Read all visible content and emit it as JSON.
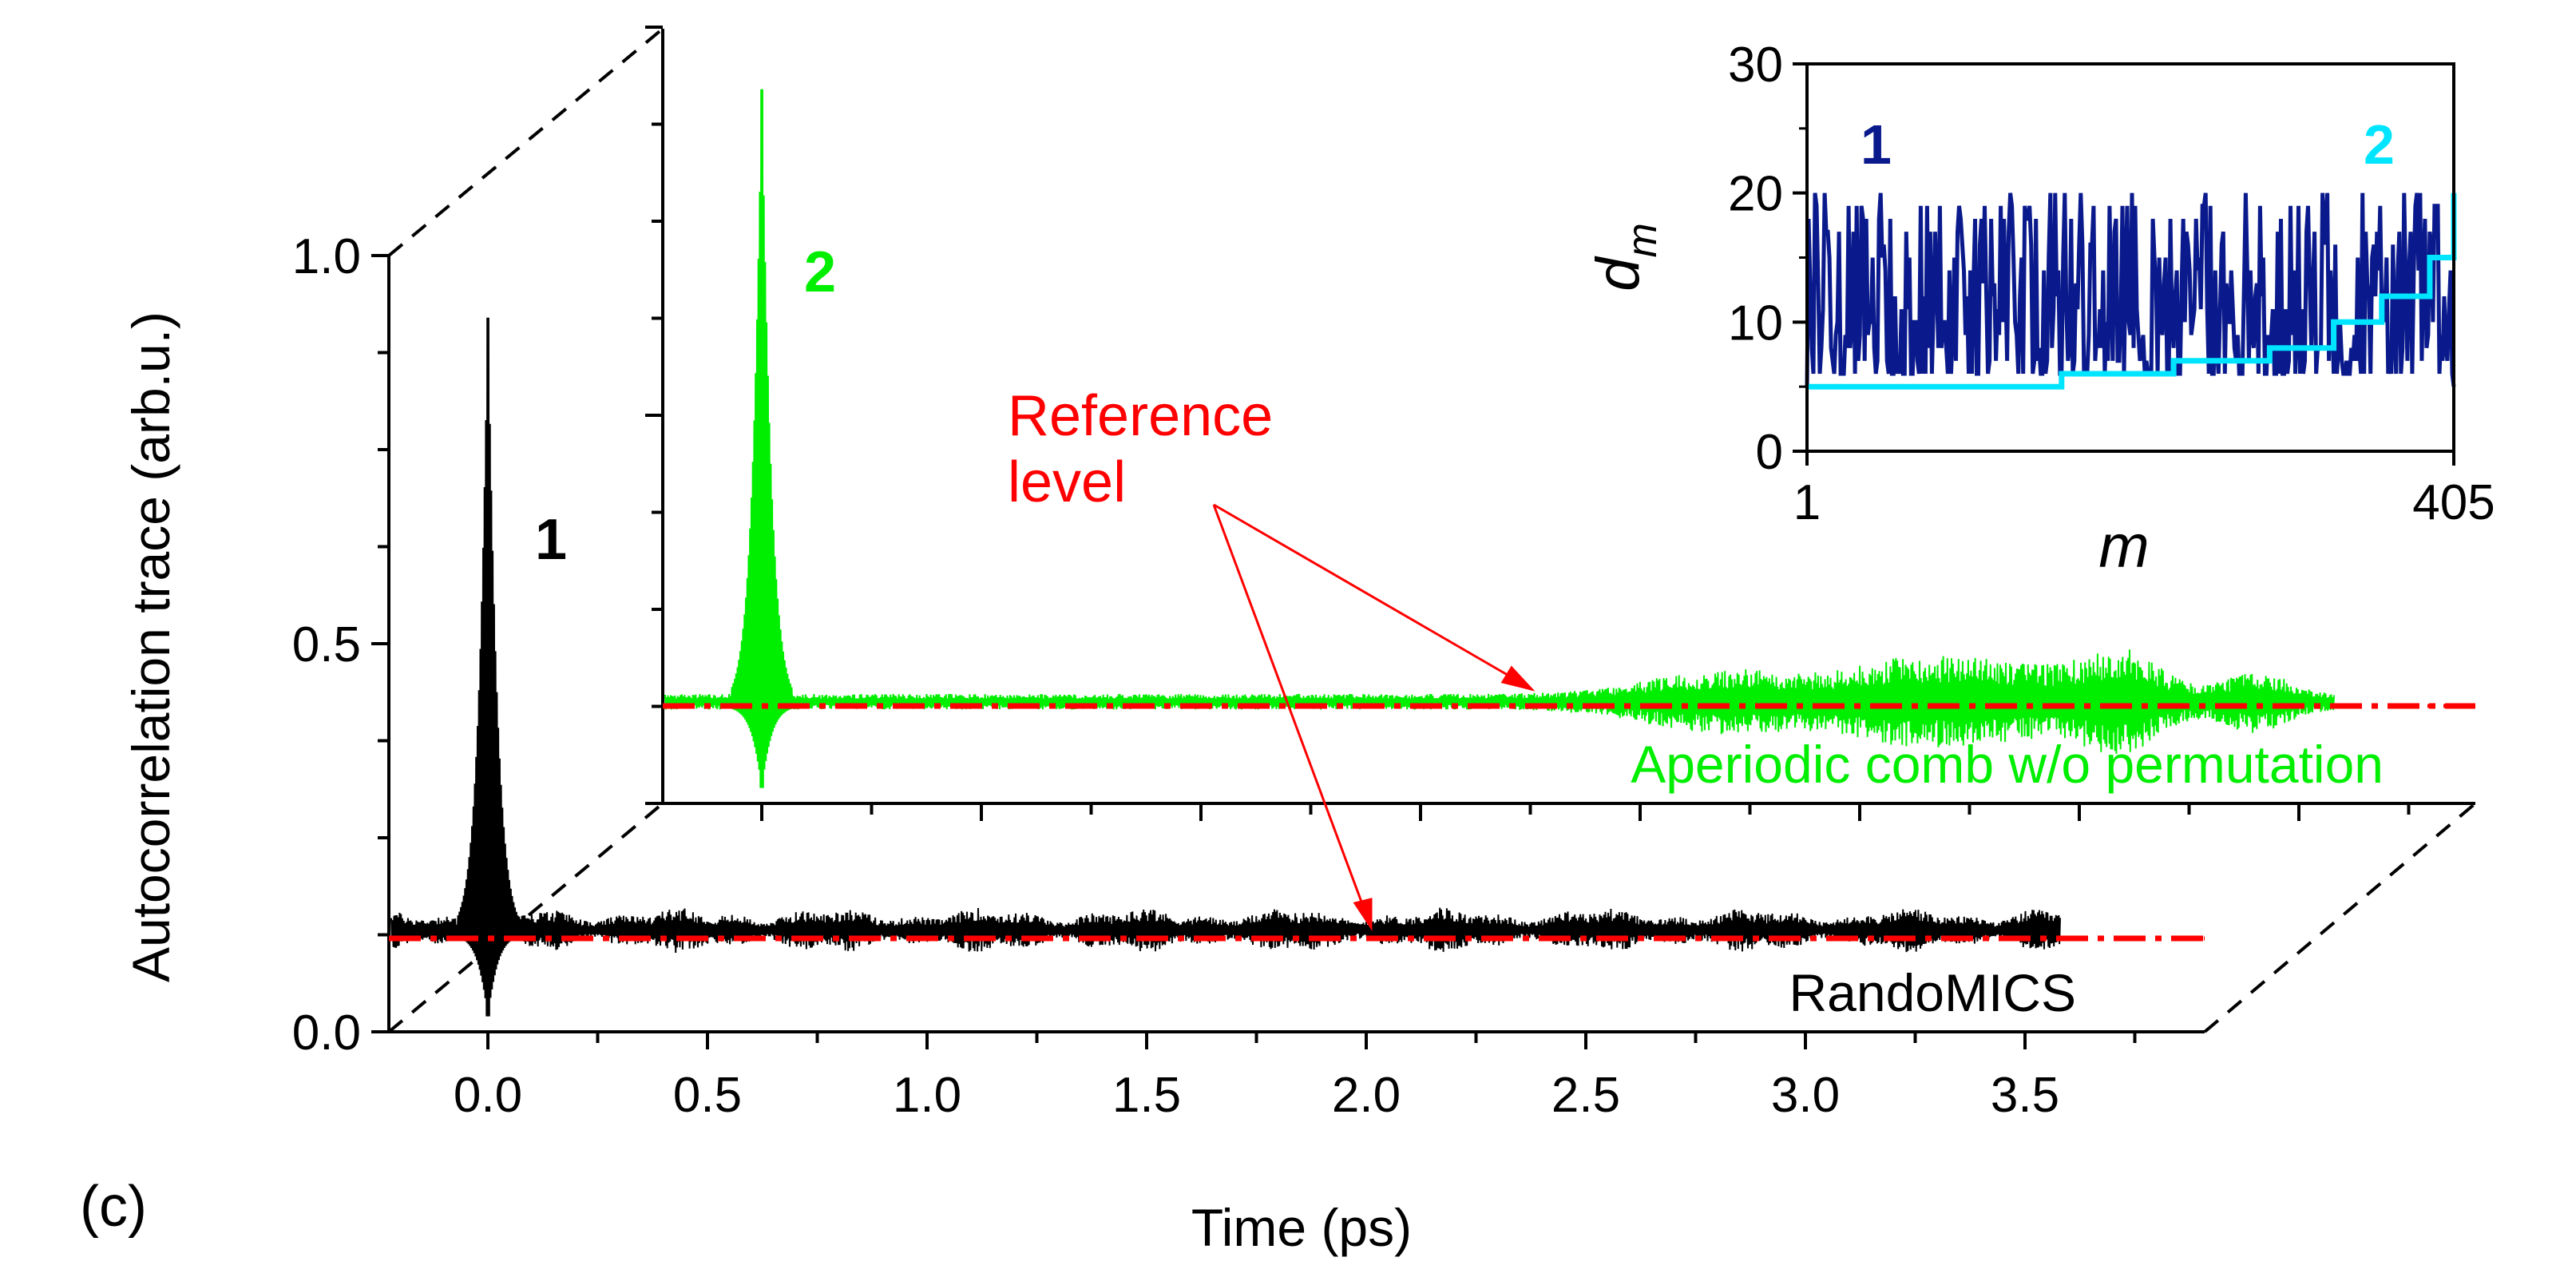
{
  "panel_label": "(c)",
  "annotations": {
    "reference_line1": "Reference",
    "reference_line2": "level"
  },
  "colors": {
    "trace1": "#000000",
    "trace2": "#00ee00",
    "reference": "#ff0000",
    "inset_series1": "#0a1a8c",
    "inset_series2": "#00e5ff",
    "axis": "#000000"
  },
  "chart_data": [
    {
      "type": "line",
      "title": "",
      "xlabel": "Time (ps)",
      "ylabel": "Autocorrelation trace (arb.u.)",
      "xlim": [
        -0.25,
        3.8
      ],
      "ylim": [
        0.0,
        1.0
      ],
      "x_ticks": [
        "0.0",
        "0.5",
        "1.0",
        "1.5",
        "2.0",
        "2.5",
        "3.0",
        "3.5"
      ],
      "y_ticks": [
        "0.0",
        "0.5",
        "1.0"
      ],
      "series": [
        {
          "name": "RandoMICS",
          "label": "1",
          "peak": {
            "x": 0.0,
            "y": 0.92,
            "min": 0.02
          },
          "baseline": 0.125,
          "noise_amplitude": 0.02,
          "x_range": [
            -0.22,
            3.58
          ]
        },
        {
          "name": "Aperiodic comb w/o permutation",
          "label": "2",
          "peak": {
            "x": 0.0,
            "y": 0.92,
            "min": 0.02
          },
          "baseline": 0.125,
          "noise_amplitude": 0.02,
          "x_range": [
            -0.22,
            3.58
          ]
        }
      ],
      "reference_level": 0.125
    },
    {
      "type": "line",
      "title": "",
      "xlabel": "m",
      "ylabel": "d_m",
      "ylabel_main": "d",
      "ylabel_sub": "m",
      "xlim": [
        1,
        405
      ],
      "ylim": [
        0,
        30
      ],
      "x_ticks": [
        "1",
        "405"
      ],
      "y_ticks": [
        "0",
        "10",
        "20",
        "30"
      ],
      "series": [
        {
          "name": "",
          "label": "1",
          "min": 5,
          "max": 20,
          "distribution": "random"
        },
        {
          "name": "",
          "label": "2",
          "x": [
            1,
            90,
            160,
            230,
            290,
            330,
            360,
            390,
            405
          ],
          "y": [
            5,
            5,
            6,
            7,
            8,
            10,
            12,
            15,
            20
          ]
        }
      ]
    }
  ]
}
